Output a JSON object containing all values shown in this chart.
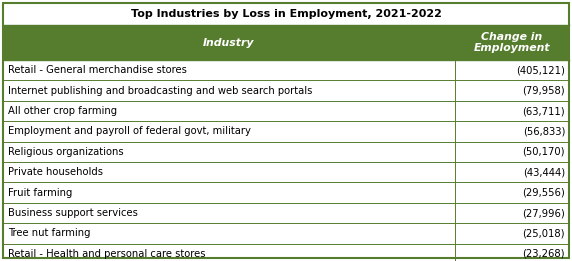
{
  "title": "Top Industries by Loss in Employment, 2021-2022",
  "col1_header": "Industry",
  "col2_header": "Change in\nEmployment",
  "rows": [
    [
      "Retail - General merchandise stores",
      "(405,121)"
    ],
    [
      "Internet publishing and broadcasting and web search portals",
      "(79,958)"
    ],
    [
      "All other crop farming",
      "(63,711)"
    ],
    [
      "Employment and payroll of federal govt, military",
      "(56,833)"
    ],
    [
      "Religious organizations",
      "(50,170)"
    ],
    [
      "Private households",
      "(43,444)"
    ],
    [
      "Fruit farming",
      "(29,556)"
    ],
    [
      "Business support services",
      "(27,996)"
    ],
    [
      "Tree nut farming",
      "(25,018)"
    ],
    [
      "Retail - Health and personal care stores",
      "(23,268)"
    ]
  ],
  "header_bg": "#567d2e",
  "header_fg": "#ffffff",
  "row_bg": "#ffffff",
  "border_color": "#567d2e",
  "title_bg": "#ffffff",
  "title_fg": "#000000",
  "col_split": 0.795,
  "title_fontsize": 8.0,
  "header_fontsize": 7.8,
  "row_fontsize": 7.2,
  "figsize": [
    5.72,
    2.61
  ],
  "dpi": 100
}
